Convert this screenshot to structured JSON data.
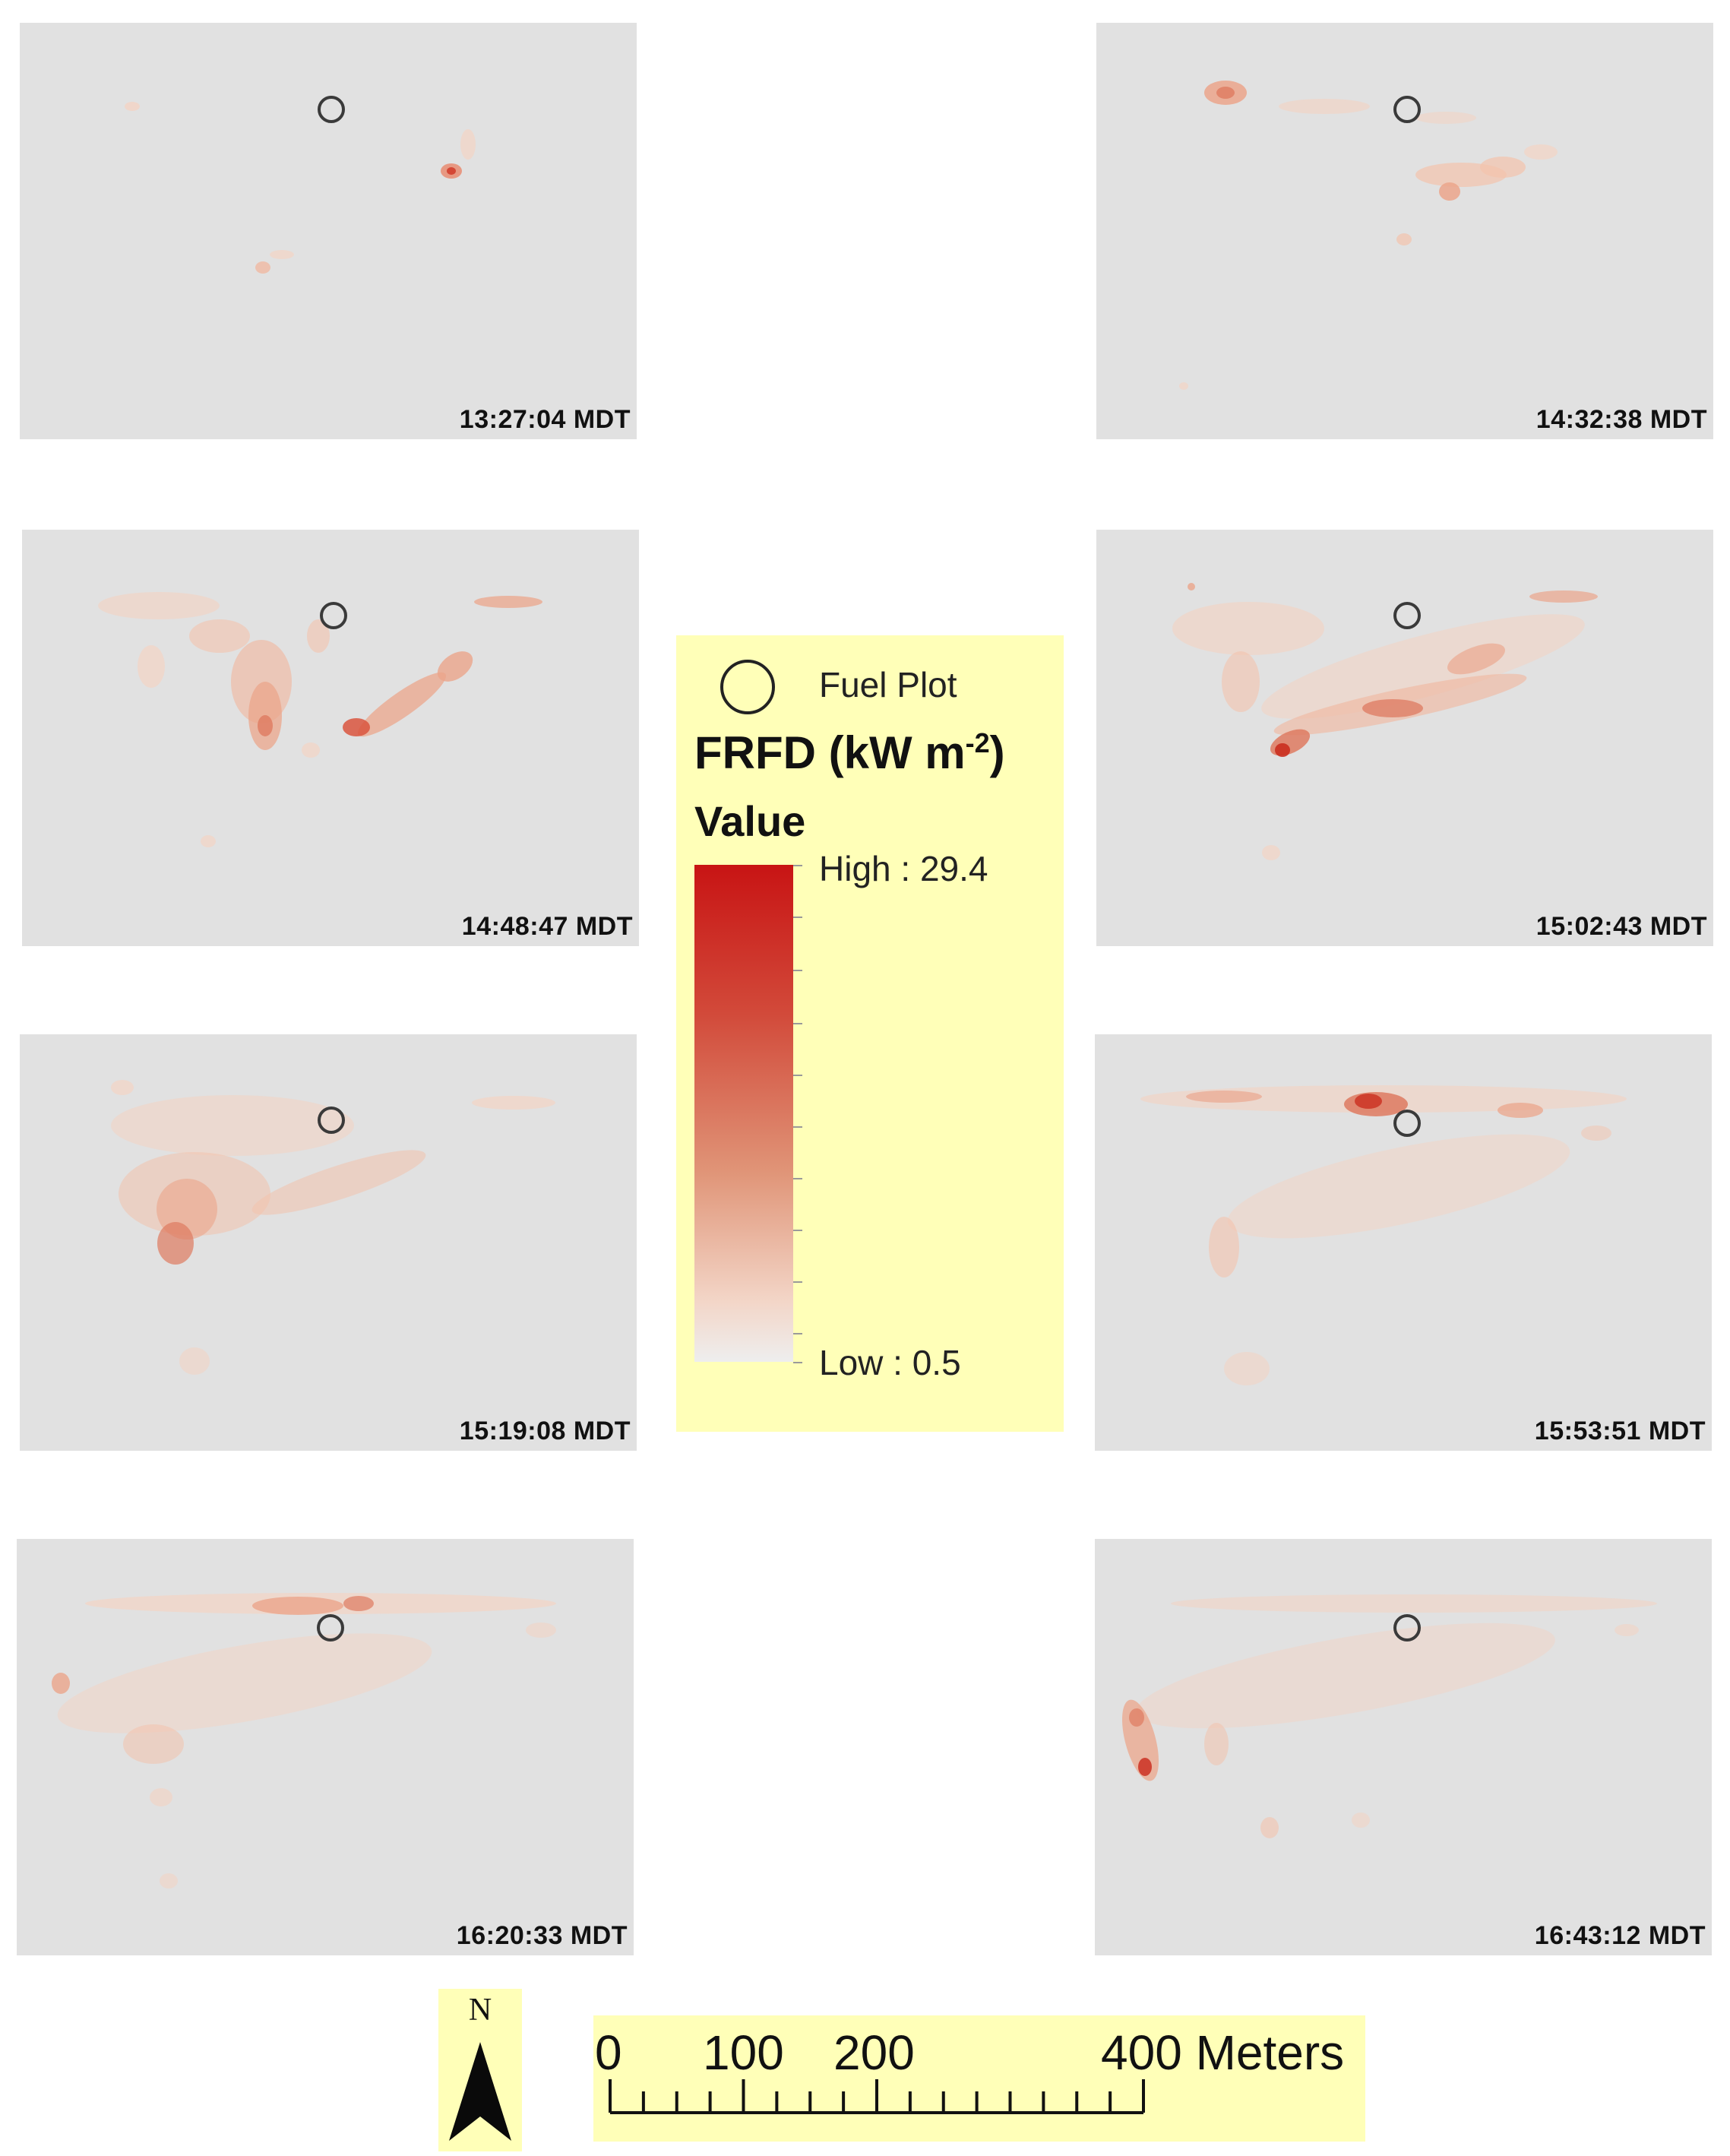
{
  "panels": [
    {
      "time": "13:27:04 MDT",
      "marker": "circle-outline"
    },
    {
      "time": "14:32:38 MDT",
      "marker": "circle-outline"
    },
    {
      "time": "14:48:47 MDT",
      "marker": "circle-outline"
    },
    {
      "time": "15:02:43 MDT",
      "marker": "circle-outline"
    },
    {
      "time": "15:19:08 MDT",
      "marker": "circle-outline"
    },
    {
      "time": "15:53:51 MDT",
      "marker": "circle-outline"
    },
    {
      "time": "16:20:33 MDT",
      "marker": "circle-outline"
    },
    {
      "time": "16:43:12 MDT",
      "marker": "circle-outline"
    }
  ],
  "legend": {
    "fuel_plot_label": "Fuel Plot",
    "title_main": "FRFD (kW m",
    "title_sup": "-2",
    "title_end": ")",
    "subtitle": "Value",
    "high_label": "High : 29.4",
    "low_label": "Low : 0.5",
    "ramp_colors": [
      "#c81414",
      "#d24a3a",
      "#e09578",
      "#f3d6c8",
      "#eeeeee"
    ]
  },
  "north_arrow": {
    "letter": "N",
    "icon": "north-arrow-icon"
  },
  "scale_bar": {
    "labels": [
      "0",
      "100",
      "200",
      "400 Meters"
    ],
    "values": [
      0,
      100,
      200,
      400
    ],
    "max": 400,
    "minor_division": 50
  },
  "colors": {
    "panel_background": "#e1e1e1",
    "legend_background": "#ffffb8",
    "fire_low": "#f6d2c0",
    "fire_mid": "#e8866a",
    "fire_high": "#c81414"
  }
}
